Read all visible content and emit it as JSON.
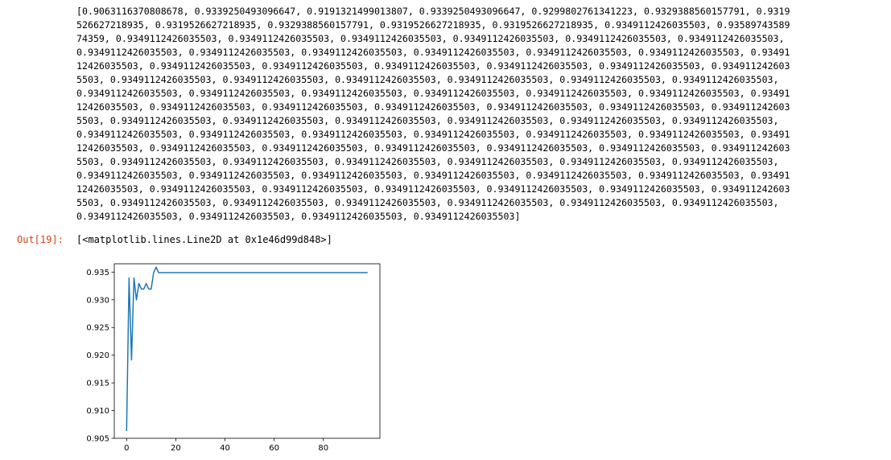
{
  "cell": {
    "stdout_lines": [
      "[0.9063116370808678, 0.9339250493096647, 0.9191321499013807, 0.9339250493096647, 0.9299802761341223, 0.9329388560157791, 0.9319",
      "526627218935, 0.9319526627218935, 0.9329388560157791, 0.9319526627218935, 0.9319526627218935, 0.9349112426035503, 0.93589743589",
      "74359, 0.9349112426035503, 0.9349112426035503, 0.9349112426035503, 0.9349112426035503, 0.9349112426035503, 0.9349112426035503,",
      "0.9349112426035503, 0.9349112426035503, 0.9349112426035503, 0.9349112426035503, 0.9349112426035503, 0.9349112426035503, 0.93491",
      "12426035503, 0.9349112426035503, 0.9349112426035503, 0.9349112426035503, 0.9349112426035503, 0.9349112426035503, 0.934911242603",
      "5503, 0.9349112426035503, 0.9349112426035503, 0.9349112426035503, 0.9349112426035503, 0.9349112426035503, 0.9349112426035503,",
      "0.9349112426035503, 0.9349112426035503, 0.9349112426035503, 0.9349112426035503, 0.9349112426035503, 0.9349112426035503, 0.93491",
      "12426035503, 0.9349112426035503, 0.9349112426035503, 0.9349112426035503, 0.9349112426035503, 0.9349112426035503, 0.934911242603",
      "5503, 0.9349112426035503, 0.9349112426035503, 0.9349112426035503, 0.9349112426035503, 0.9349112426035503, 0.9349112426035503,",
      "0.9349112426035503, 0.9349112426035503, 0.9349112426035503, 0.9349112426035503, 0.9349112426035503, 0.9349112426035503, 0.93491",
      "12426035503, 0.9349112426035503, 0.9349112426035503, 0.9349112426035503, 0.9349112426035503, 0.9349112426035503, 0.934911242603",
      "5503, 0.9349112426035503, 0.9349112426035503, 0.9349112426035503, 0.9349112426035503, 0.9349112426035503, 0.9349112426035503,",
      "0.9349112426035503, 0.9349112426035503, 0.9349112426035503, 0.9349112426035503, 0.9349112426035503, 0.9349112426035503, 0.93491",
      "12426035503, 0.9349112426035503, 0.9349112426035503, 0.9349112426035503, 0.9349112426035503, 0.9349112426035503, 0.934911242603",
      "5503, 0.9349112426035503, 0.9349112426035503, 0.9349112426035503, 0.9349112426035503, 0.9349112426035503, 0.9349112426035503,",
      "0.9349112426035503, 0.9349112426035503, 0.9349112426035503, 0.9349112426035503]"
    ],
    "out_prompt": "Out[19]:",
    "out_repr": "[<matplotlib.lines.Line2D at 0x1e46d99d848>]"
  },
  "chart_data": {
    "type": "line",
    "title": "",
    "xlabel": "",
    "ylabel": "",
    "xlim": [
      -5,
      103
    ],
    "ylim": [
      0.905,
      0.9365
    ],
    "xticks": [
      0,
      20,
      40,
      60,
      80
    ],
    "xtick_labels": [
      "0",
      "20",
      "40",
      "60",
      "80"
    ],
    "yticks": [
      0.905,
      0.91,
      0.915,
      0.92,
      0.925,
      0.93,
      0.935
    ],
    "ytick_labels": [
      "0.905",
      "0.910",
      "0.915",
      "0.920",
      "0.925",
      "0.930",
      "0.935"
    ],
    "grid": false,
    "line_color": "#1f77b4",
    "series": [
      {
        "values": [
          0.9063116370808678,
          0.9339250493096647,
          0.9191321499013807,
          0.9339250493096647,
          0.9299802761341223,
          0.9329388560157791,
          0.9319526627218935,
          0.9319526627218935,
          0.9329388560157791,
          0.9319526627218935,
          0.9319526627218935,
          0.9349112426035503,
          0.9358974358974359,
          0.9349112426035503,
          0.9349112426035503,
          0.9349112426035503,
          0.9349112426035503,
          0.9349112426035503,
          0.9349112426035503,
          0.9349112426035503,
          0.9349112426035503,
          0.9349112426035503,
          0.9349112426035503,
          0.9349112426035503,
          0.9349112426035503,
          0.9349112426035503,
          0.9349112426035503,
          0.9349112426035503,
          0.9349112426035503,
          0.9349112426035503,
          0.9349112426035503,
          0.9349112426035503,
          0.9349112426035503,
          0.9349112426035503,
          0.9349112426035503,
          0.9349112426035503,
          0.9349112426035503,
          0.9349112426035503,
          0.9349112426035503,
          0.9349112426035503,
          0.9349112426035503,
          0.9349112426035503,
          0.9349112426035503,
          0.9349112426035503,
          0.9349112426035503,
          0.9349112426035503,
          0.9349112426035503,
          0.9349112426035503,
          0.9349112426035503,
          0.9349112426035503,
          0.9349112426035503,
          0.9349112426035503,
          0.9349112426035503,
          0.9349112426035503,
          0.9349112426035503,
          0.9349112426035503,
          0.9349112426035503,
          0.9349112426035503,
          0.9349112426035503,
          0.9349112426035503,
          0.9349112426035503,
          0.9349112426035503,
          0.9349112426035503,
          0.9349112426035503,
          0.9349112426035503,
          0.9349112426035503,
          0.9349112426035503,
          0.9349112426035503,
          0.9349112426035503,
          0.9349112426035503,
          0.9349112426035503,
          0.9349112426035503,
          0.9349112426035503,
          0.9349112426035503,
          0.9349112426035503,
          0.9349112426035503,
          0.9349112426035503,
          0.9349112426035503,
          0.9349112426035503,
          0.9349112426035503,
          0.9349112426035503,
          0.9349112426035503,
          0.9349112426035503,
          0.9349112426035503,
          0.9349112426035503,
          0.9349112426035503,
          0.9349112426035503,
          0.9349112426035503,
          0.9349112426035503,
          0.9349112426035503,
          0.9349112426035503,
          0.9349112426035503,
          0.9349112426035503,
          0.9349112426035503,
          0.9349112426035503,
          0.9349112426035503,
          0.9349112426035503,
          0.9349112426035503,
          0.9349112426035503
        ]
      }
    ]
  }
}
